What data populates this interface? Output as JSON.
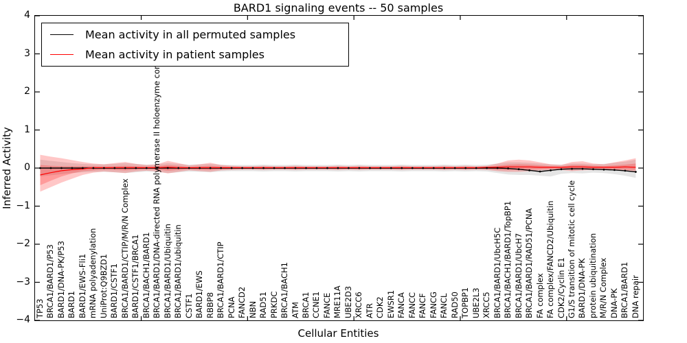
{
  "title": "BARD1 signaling events -- 50 samples",
  "legend": {
    "items": [
      {
        "label": "Mean activity in all permuted samples",
        "color": "#000000"
      },
      {
        "label": "Mean activity in patient samples",
        "color": "#ff0000"
      }
    ]
  },
  "axes": {
    "ylabel": "Inferred Activity",
    "xlabel": "Cellular Entities",
    "y_ticks": [
      4,
      3,
      2,
      1,
      0,
      -1,
      -2,
      -3,
      -4
    ],
    "ylim": [
      -4,
      4
    ]
  },
  "chart_data": {
    "type": "line",
    "title": "BARD1 signaling events -- 50 samples",
    "xlabel": "Cellular Entities",
    "ylabel": "Inferred Activity",
    "ylim": [
      -4,
      4
    ],
    "grid": false,
    "legend_position": "upper left",
    "x_major_ticks_at": [
      9.5,
      19.5,
      29.5,
      39.5,
      49.5
    ],
    "x_labels": [
      "TP53",
      "BRCA1/BARD1/P53",
      "BARD1/DNA-PK/P53",
      "BARD1",
      "BARD1/EWS-Fli1",
      "mRNA polyadenylation",
      "UniProt:Q9BZD1",
      "BARD1/CSTF1",
      "BRCA1/BARD1/CTIP/M/R/N Complex",
      "BARD1/CSTF1/BRCA1",
      "BRCA1/BACH1/BARD1",
      "BRCA1/BARD1/DNA-directed RNA polymerase II holoenzyme complex",
      "BRCA1/BARD1/Ubiquitin",
      "BRCA1/BARD1/ubiquitin",
      "CSTF1",
      "BARD1/EWS",
      "RBBP8",
      "BRCA1/BARD1/CTIP",
      "PCNA",
      "FANCD2",
      "NBN",
      "RAD51",
      "PRKDC",
      "BRCA1/BACH1",
      "ATM",
      "BRCA1",
      "CCNE1",
      "FANCE",
      "MRE11A",
      "UBE2D3",
      "XRCC6",
      "ATR",
      "CDK2",
      "EWSR1",
      "FANCA",
      "FANCC",
      "FANCF",
      "FANCG",
      "FANCL",
      "RAD50",
      "TOPBP1",
      "UBE2L3",
      "XRCC5",
      "BRCA1/BARD1/UbcH5C",
      "BRCA1/BACH1/BARD1/TopBP1",
      "BRCA1/BARD1/UbcH7",
      "BRCA1/BARD1/RAD51/PCNA",
      "FA complex",
      "FA complex/FANCD2/Ubiquitin",
      "CDK2/Cyclin E1",
      "G1/S transition of mitotic cell cycle",
      "BARD1/DNA-PK",
      "protein ubiquitination",
      "M/R/N Complex",
      "DNA-PK",
      "BRCA1/BARD1",
      "DNA repair"
    ],
    "series": [
      {
        "name": "Mean activity in all permuted samples",
        "color": "#000000",
        "marker": "point",
        "values": [
          0,
          0,
          0,
          0,
          0,
          0,
          0,
          0,
          0,
          0,
          0,
          0,
          0,
          0,
          0,
          0,
          0,
          0,
          0,
          0,
          0,
          0,
          0,
          0,
          0,
          0,
          0,
          0,
          0,
          0,
          0,
          0,
          0,
          0,
          0,
          0,
          0,
          0,
          0,
          0,
          0,
          0,
          0,
          0,
          -0.01,
          -0.03,
          -0.06,
          -0.09,
          -0.06,
          -0.03,
          -0.02,
          -0.02,
          -0.03,
          -0.04,
          -0.05,
          -0.07,
          -0.1
        ]
      },
      {
        "name": "Mean activity in patient samples",
        "color": "#ff0000",
        "marker": "none",
        "values": [
          -0.18,
          -0.12,
          -0.07,
          -0.04,
          -0.02,
          0.01,
          0.01,
          0.01,
          0.01,
          0.01,
          0.01,
          0.01,
          0.02,
          0.01,
          0.01,
          0.01,
          0.01,
          0.01,
          0.01,
          0.01,
          0.01,
          0.01,
          0.01,
          0.01,
          0.01,
          0.01,
          0.01,
          0.01,
          0.01,
          0.01,
          0.01,
          0.01,
          0.01,
          0.01,
          0.01,
          0.01,
          0.01,
          0.01,
          0.01,
          0.01,
          0.01,
          0.01,
          0.02,
          0.02,
          0.03,
          0.03,
          0.03,
          0.02,
          0.02,
          0.02,
          0.03,
          0.03,
          0.02,
          0.02,
          0.02,
          0.03,
          0.02
        ]
      }
    ],
    "bands": [
      {
        "name": "permuted-samples-spread",
        "color": "rgba(0,0,0,0.10)",
        "upper": [
          0.22,
          0.19,
          0.16,
          0.13,
          0.11,
          0.1,
          0.1,
          0.11,
          0.13,
          0.11,
          0.09,
          0.1,
          0.13,
          0.11,
          0.09,
          0.1,
          0.11,
          0.09,
          0.08,
          0.08,
          0.08,
          0.09,
          0.08,
          0.08,
          0.09,
          0.08,
          0.08,
          0.08,
          0.09,
          0.08,
          0.09,
          0.08,
          0.08,
          0.08,
          0.09,
          0.08,
          0.08,
          0.08,
          0.09,
          0.08,
          0.09,
          0.08,
          0.09,
          0.12,
          0.15,
          0.15,
          0.14,
          0.12,
          0.1,
          0.09,
          0.12,
          0.12,
          0.1,
          0.11,
          0.14,
          0.17,
          0.22
        ],
        "lower": [
          -0.22,
          -0.19,
          -0.16,
          -0.13,
          -0.11,
          -0.1,
          -0.1,
          -0.11,
          -0.13,
          -0.11,
          -0.09,
          -0.1,
          -0.13,
          -0.11,
          -0.09,
          -0.1,
          -0.11,
          -0.09,
          -0.08,
          -0.08,
          -0.08,
          -0.09,
          -0.08,
          -0.08,
          -0.09,
          -0.08,
          -0.08,
          -0.08,
          -0.09,
          -0.08,
          -0.09,
          -0.08,
          -0.08,
          -0.08,
          -0.09,
          -0.08,
          -0.08,
          -0.08,
          -0.09,
          -0.08,
          -0.09,
          -0.08,
          -0.09,
          -0.13,
          -0.17,
          -0.18,
          -0.18,
          -0.2,
          -0.22,
          -0.15,
          -0.13,
          -0.14,
          -0.12,
          -0.13,
          -0.16,
          -0.2,
          -0.26
        ]
      },
      {
        "name": "patient-samples-spread-outer",
        "color": "rgba(255,0,0,0.22)",
        "upper": [
          0.35,
          0.3,
          0.26,
          0.21,
          0.16,
          0.12,
          0.1,
          0.13,
          0.16,
          0.11,
          0.08,
          0.1,
          0.19,
          0.13,
          0.07,
          0.1,
          0.14,
          0.08,
          0.06,
          0.05,
          0.05,
          0.06,
          0.05,
          0.05,
          0.06,
          0.05,
          0.05,
          0.05,
          0.06,
          0.05,
          0.06,
          0.05,
          0.05,
          0.05,
          0.06,
          0.05,
          0.05,
          0.05,
          0.06,
          0.05,
          0.06,
          0.05,
          0.06,
          0.12,
          0.2,
          0.22,
          0.2,
          0.15,
          0.1,
          0.08,
          0.16,
          0.18,
          0.12,
          0.1,
          0.15,
          0.2,
          0.26
        ],
        "lower": [
          -0.62,
          -0.5,
          -0.38,
          -0.28,
          -0.18,
          -0.12,
          -0.09,
          -0.11,
          -0.13,
          -0.09,
          -0.07,
          -0.09,
          -0.14,
          -0.1,
          -0.06,
          -0.08,
          -0.1,
          -0.06,
          -0.05,
          -0.04,
          -0.04,
          -0.05,
          -0.04,
          -0.04,
          -0.05,
          -0.04,
          -0.04,
          -0.04,
          -0.05,
          -0.04,
          -0.05,
          -0.04,
          -0.04,
          -0.04,
          -0.05,
          -0.04,
          -0.04,
          -0.04,
          -0.05,
          -0.04,
          -0.05,
          -0.04,
          -0.05,
          -0.08,
          -0.1,
          -0.1,
          -0.08,
          -0.06,
          -0.05,
          -0.05,
          -0.08,
          -0.06,
          -0.05,
          -0.04,
          -0.05,
          -0.08,
          -0.1
        ]
      },
      {
        "name": "patient-samples-spread-inner",
        "color": "rgba(255,0,0,0.22)",
        "upper": [
          0.08,
          0.06,
          0.05,
          0.05,
          0.05,
          0.05,
          0.04,
          0.05,
          0.06,
          0.05,
          0.04,
          0.05,
          0.08,
          0.06,
          0.03,
          0.05,
          0.06,
          0.04,
          0.03,
          0.02,
          0.02,
          0.03,
          0.02,
          0.02,
          0.03,
          0.02,
          0.02,
          0.02,
          0.03,
          0.02,
          0.03,
          0.02,
          0.02,
          0.02,
          0.03,
          0.02,
          0.02,
          0.02,
          0.03,
          0.02,
          0.03,
          0.02,
          0.03,
          0.06,
          0.09,
          0.1,
          0.09,
          0.07,
          0.05,
          0.04,
          0.08,
          0.08,
          0.06,
          0.05,
          0.07,
          0.09,
          0.12
        ],
        "lower": [
          -0.45,
          -0.33,
          -0.22,
          -0.14,
          -0.08,
          -0.06,
          -0.04,
          -0.05,
          -0.06,
          -0.04,
          -0.03,
          -0.04,
          -0.07,
          -0.05,
          -0.03,
          -0.04,
          -0.05,
          -0.03,
          -0.02,
          -0.02,
          -0.02,
          -0.02,
          -0.02,
          -0.02,
          -0.02,
          -0.02,
          -0.02,
          -0.02,
          -0.02,
          -0.02,
          -0.02,
          -0.02,
          -0.02,
          -0.02,
          -0.02,
          -0.02,
          -0.02,
          -0.02,
          -0.02,
          -0.02,
          -0.02,
          -0.02,
          -0.02,
          -0.04,
          -0.05,
          -0.05,
          -0.04,
          -0.03,
          -0.02,
          -0.02,
          -0.04,
          -0.03,
          -0.02,
          -0.02,
          -0.03,
          -0.04,
          -0.05
        ]
      }
    ]
  }
}
